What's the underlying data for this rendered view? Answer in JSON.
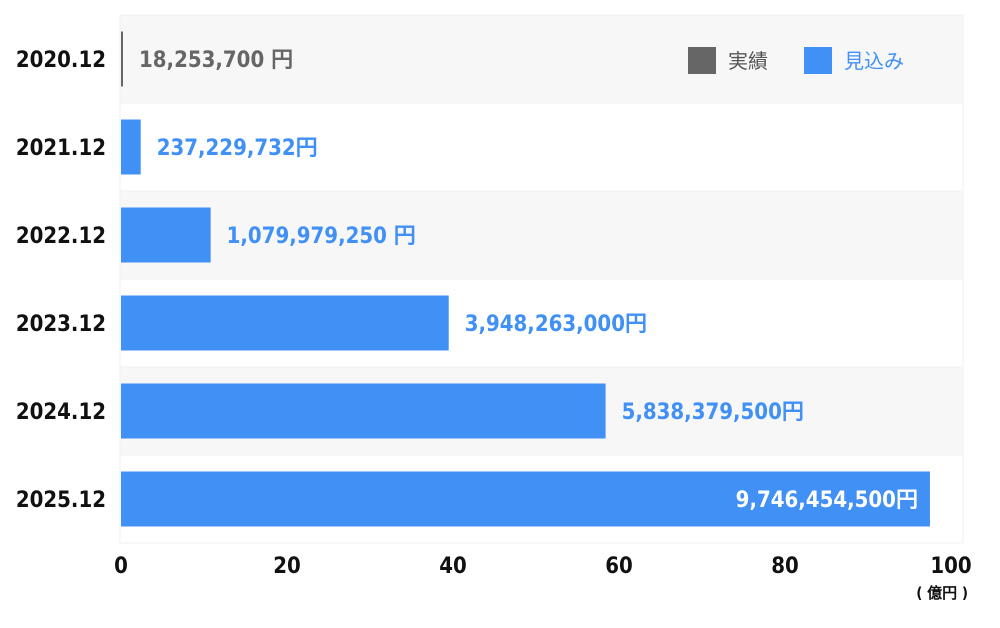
{
  "chart_data": {
    "type": "bar",
    "orientation": "horizontal",
    "categories": [
      "2020.12",
      "2021.12",
      "2022.12",
      "2023.12",
      "2024.12",
      "2025.12"
    ],
    "values": [
      0.182537,
      2.37229732,
      10.7997925,
      39.48263,
      58.383795,
      97.464545
    ],
    "value_labels": [
      "18,253,700 円",
      "237,229,732円",
      "1,079,979,250 円",
      "3,948,263,000円",
      "5,838,379,500円",
      "9,746,454,500円"
    ],
    "series_type": [
      "実績",
      "見込み",
      "見込み",
      "見込み",
      "見込み",
      "見込み"
    ],
    "legend": [
      {
        "name": "実績",
        "color": "#666666"
      },
      {
        "name": "見込み",
        "color": "#4190f5"
      }
    ],
    "legend_placement": "top-right",
    "xlim": [
      0,
      100
    ],
    "xticks": [
      "0",
      "20",
      "40",
      "60",
      "80",
      "100"
    ],
    "xunit": "( 億円 )",
    "grid": false,
    "colors": {
      "actual": "#666666",
      "forecast": "#4190f5",
      "band": "#f7f7f7"
    }
  }
}
